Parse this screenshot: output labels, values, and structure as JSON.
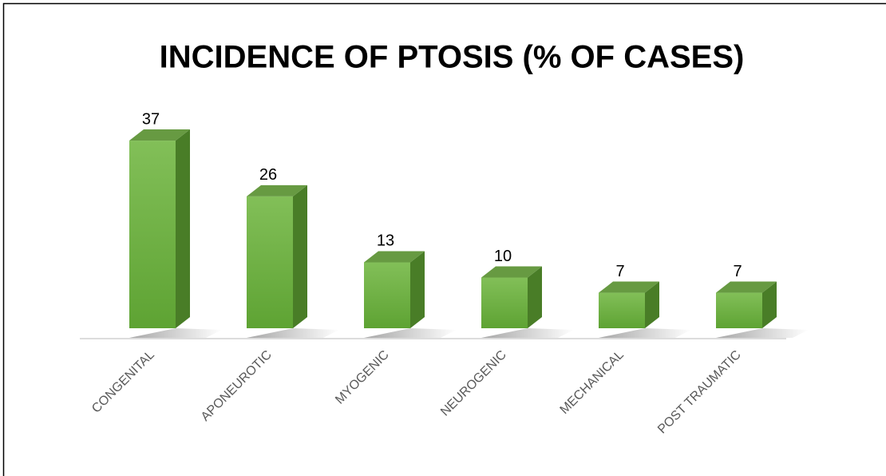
{
  "chart_data": {
    "type": "bar3d",
    "title": "INCIDENCE OF PTOSIS (% OF CASES)",
    "categories": [
      "CONGENITAL",
      "APONEUROTIC",
      "MYOGENIC",
      "NEUROGENIC",
      "MECHANICAL",
      "POST TRAUMATIC"
    ],
    "values": [
      37,
      26,
      13,
      10,
      7,
      7
    ],
    "color": "#6aad3d"
  }
}
